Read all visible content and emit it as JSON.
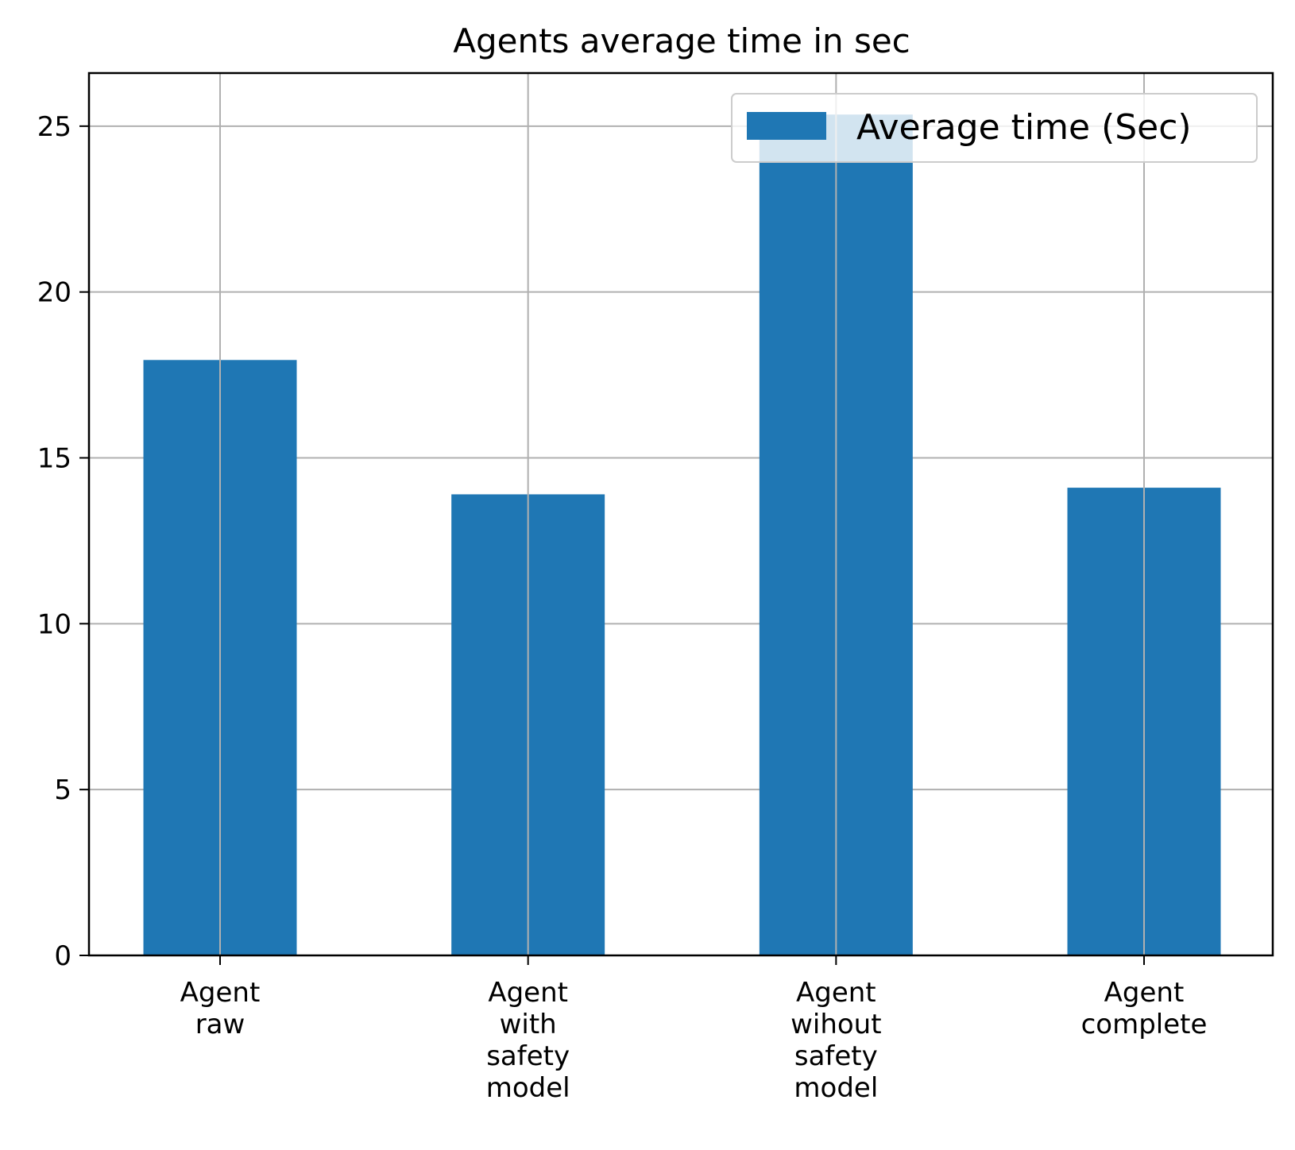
{
  "chart_data": {
    "type": "bar",
    "title": "Agents average time in sec",
    "categories": [
      [
        "Agent",
        "raw"
      ],
      [
        "Agent",
        "with",
        "safety",
        "model"
      ],
      [
        "Agent",
        "wihout",
        "safety",
        "model"
      ],
      [
        "Agent",
        "complete"
      ]
    ],
    "series": [
      {
        "name": "Average time (Sec)",
        "values": [
          17.95,
          13.9,
          25.35,
          14.1
        ]
      }
    ],
    "ylim": [
      0,
      26.6
    ],
    "yticks": [
      0,
      5,
      10,
      15,
      20,
      25
    ],
    "grid": true,
    "legend_position": "top-right",
    "colors": {
      "bar": "#1f77b4",
      "grid": "#b0b0b0",
      "axis": "#000000"
    }
  }
}
